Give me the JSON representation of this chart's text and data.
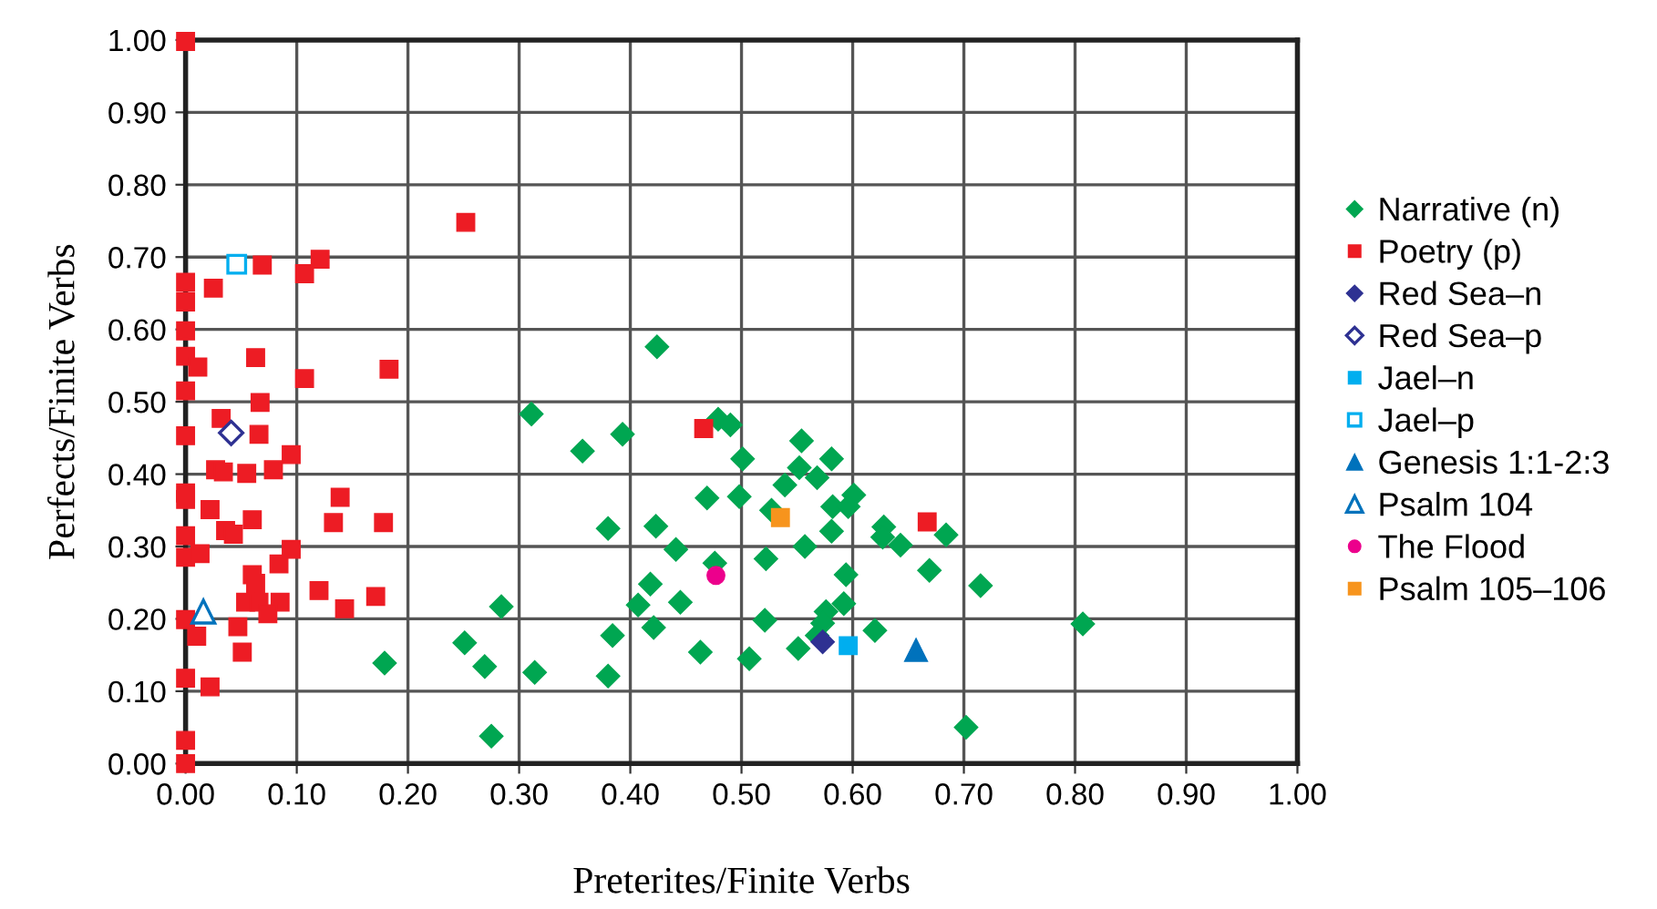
{
  "chart_data": {
    "type": "scatter",
    "xlabel": "Preterites/Finite Verbs",
    "ylabel": "Perfects/Finite Verbs",
    "xlim": [
      0,
      1
    ],
    "ylim": [
      0,
      1
    ],
    "xticks": [
      {
        "value": 0,
        "label": "0.00"
      },
      {
        "value": 0.1,
        "label": "0.10"
      },
      {
        "value": 0.2,
        "label": "0.20"
      },
      {
        "value": 0.3,
        "label": "0.30"
      },
      {
        "value": 0.4,
        "label": "0.40"
      },
      {
        "value": 0.5,
        "label": "0.50"
      },
      {
        "value": 0.6,
        "label": "0.60"
      },
      {
        "value": 0.7,
        "label": "0.70"
      },
      {
        "value": 0.8,
        "label": "0.80"
      },
      {
        "value": 0.9,
        "label": "0.90"
      },
      {
        "value": 1,
        "label": "1.00"
      }
    ],
    "yticks": [
      {
        "value": 0,
        "label": "0.00"
      },
      {
        "value": 0.1,
        "label": "0.10"
      },
      {
        "value": 0.2,
        "label": "0.20"
      },
      {
        "value": 0.3,
        "label": "0.30"
      },
      {
        "value": 0.4,
        "label": "0.40"
      },
      {
        "value": 0.5,
        "label": "0.50"
      },
      {
        "value": 0.6,
        "label": "0.60"
      },
      {
        "value": 0.7,
        "label": "0.70"
      },
      {
        "value": 0.8,
        "label": "0.80"
      },
      {
        "value": 0.9,
        "label": "0.90"
      },
      {
        "value": 1,
        "label": "1.00"
      }
    ],
    "grid": true,
    "legend": "right",
    "series": [
      {
        "name": "Narrative (n)",
        "color": "#00a651",
        "marker": "diamond",
        "x": [
          0.179,
          0.424,
          0.311,
          0.393,
          0.357,
          0.479,
          0.49,
          0.554,
          0.501,
          0.552,
          0.539,
          0.469,
          0.498,
          0.527,
          0.38,
          0.423,
          0.441,
          0.557,
          0.522,
          0.476,
          0.418,
          0.284,
          0.407,
          0.445,
          0.521,
          0.421,
          0.384,
          0.251,
          0.551,
          0.463,
          0.507,
          0.269,
          0.314,
          0.38,
          0.275,
          0.581,
          0.568,
          0.601,
          0.582,
          0.596,
          0.581,
          0.628,
          0.627,
          0.643,
          0.684,
          0.594,
          0.669,
          0.715,
          0.592,
          0.576,
          0.573,
          0.568,
          0.62,
          0.807,
          0.702
        ],
        "values": [
          0.139,
          0.576,
          0.483,
          0.455,
          0.432,
          0.476,
          0.468,
          0.446,
          0.421,
          0.409,
          0.385,
          0.367,
          0.369,
          0.35,
          0.325,
          0.328,
          0.296,
          0.3,
          0.283,
          0.277,
          0.248,
          0.217,
          0.219,
          0.223,
          0.198,
          0.188,
          0.177,
          0.167,
          0.159,
          0.154,
          0.145,
          0.134,
          0.126,
          0.121,
          0.038,
          0.421,
          0.395,
          0.371,
          0.355,
          0.355,
          0.321,
          0.327,
          0.313,
          0.302,
          0.316,
          0.261,
          0.267,
          0.246,
          0.221,
          0.21,
          0.194,
          0.177,
          0.184,
          0.193,
          0.05
        ]
      },
      {
        "name": "Poetry (p)",
        "color": "#ed1c24",
        "marker": "square",
        "x": [
          0,
          0.069,
          0.107,
          0.121,
          0,
          0.025,
          0,
          0,
          0,
          0.011,
          0.063,
          0.107,
          0.183,
          0,
          0.067,
          0.032,
          0.066,
          0,
          0.095,
          0.027,
          0.034,
          0.055,
          0.079,
          0,
          0,
          0.139,
          0.022,
          0.06,
          0.133,
          0.178,
          0.036,
          0.043,
          0,
          0,
          0.013,
          0.095,
          0.084,
          0.06,
          0.063,
          0.12,
          0.171,
          0.054,
          0.066,
          0.085,
          0.143,
          0.074,
          0,
          0.047,
          0.01,
          0.051,
          0,
          0.022,
          0,
          0,
          0.252,
          0.466,
          0.667
        ],
        "values": [
          0.998,
          0.689,
          0.677,
          0.697,
          0.665,
          0.657,
          0.638,
          0.598,
          0.563,
          0.548,
          0.561,
          0.532,
          0.545,
          0.515,
          0.499,
          0.477,
          0.455,
          0.453,
          0.427,
          0.406,
          0.403,
          0.401,
          0.406,
          0.374,
          0.365,
          0.368,
          0.351,
          0.337,
          0.333,
          0.333,
          0.322,
          0.317,
          0.315,
          0.285,
          0.29,
          0.296,
          0.276,
          0.261,
          0.249,
          0.239,
          0.231,
          0.223,
          0.223,
          0.223,
          0.214,
          0.207,
          0.199,
          0.189,
          0.176,
          0.154,
          0.118,
          0.106,
          0.032,
          0.0,
          0.748,
          0.463,
          0.334
        ]
      },
      {
        "name": "Red Sea–n",
        "color": "#2e3192",
        "marker": "diamond",
        "x": [
          0.573
        ],
        "values": [
          0.168
        ]
      },
      {
        "name": "Red Sea–p",
        "color": "#2e3192",
        "marker": "diamond",
        "x": [
          0.041
        ],
        "values": [
          0.457
        ]
      },
      {
        "name": "Jael–n",
        "color": "#00aeef",
        "marker": "square",
        "x": [
          0.596
        ],
        "values": [
          0.163
        ]
      },
      {
        "name": "Jael–p",
        "color": "#00aeef",
        "marker": "square",
        "x": [
          0.046
        ],
        "values": [
          0.69
        ]
      },
      {
        "name": "Genesis 1:1-2:3",
        "color": "#0072bc",
        "marker": "triangle",
        "x": [
          0.657
        ],
        "values": [
          0.157
        ]
      },
      {
        "name": "Psalm 104",
        "color": "#0072bc",
        "marker": "triangle",
        "x": [
          0.016
        ],
        "values": [
          0.21
        ]
      },
      {
        "name": "The Flood",
        "color": "#ec008c",
        "marker": "circle",
        "x": [
          0.477
        ],
        "values": [
          0.26
        ]
      },
      {
        "name": "Psalm 105–106",
        "color": "#f7941d",
        "marker": "square",
        "x": [
          0.535
        ],
        "values": [
          0.34
        ]
      }
    ]
  }
}
